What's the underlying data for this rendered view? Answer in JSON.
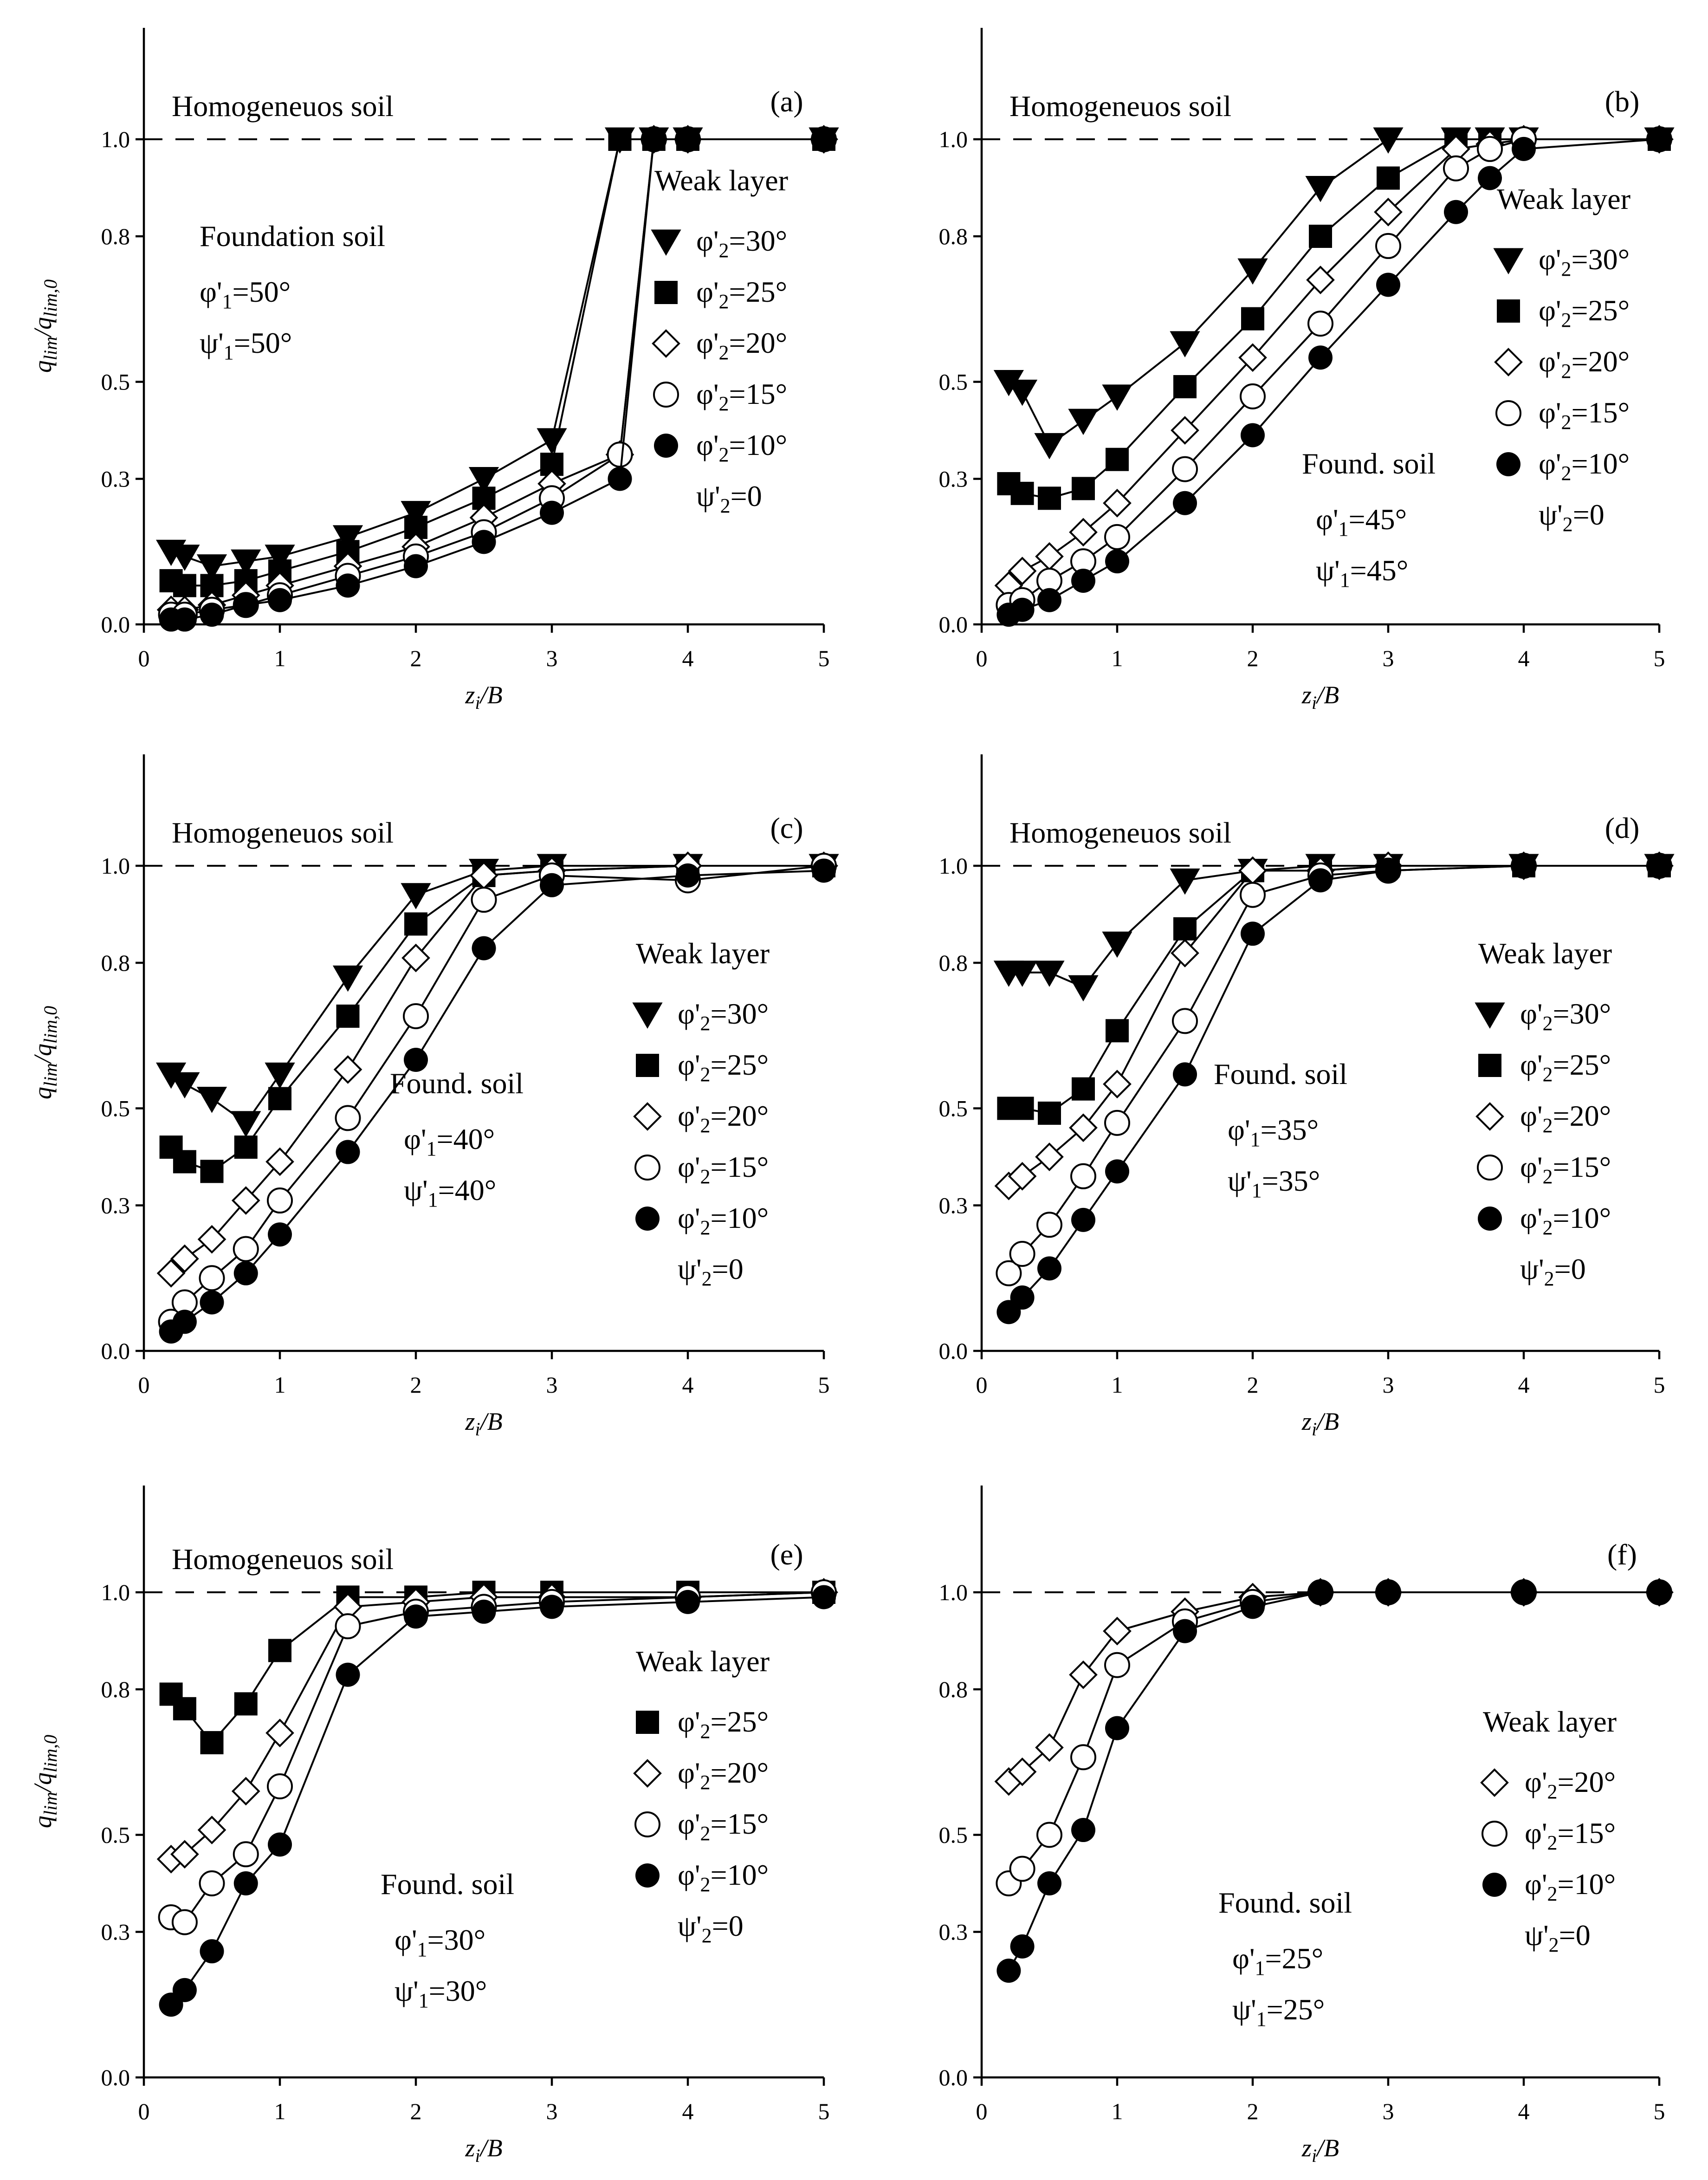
{
  "figure": {
    "x_axis_label": "z",
    "x_axis_label_sub": "i",
    "x_axis_label_tail": "/B",
    "y_axis_label": "q",
    "y_axis_label_sub": "lim",
    "y_axis_label_mid": "/q",
    "y_axis_label_sub2": "lim,0",
    "weak_layer_title": "Weak layer",
    "homogeneous_label": "Homogeneuos soil",
    "dilation_weak": "ψ'2=0"
  },
  "chart_data": [
    {
      "id": "a",
      "panel_label": "(a)",
      "type": "line",
      "xlim": [
        0,
        5
      ],
      "ylim": [
        0,
        1.2
      ],
      "xticks": [
        "0",
        "1",
        "2",
        "3",
        "4",
        "5"
      ],
      "yticks": [
        "0.0",
        "0.3",
        "0.5",
        "0.8",
        "1.0"
      ],
      "ytick_values": [
        0,
        0.3,
        0.5,
        0.8,
        1.0
      ],
      "reference_value": 1.0,
      "show_homogeneous": true,
      "foundation_title": "Foundation soil",
      "phi1": "φ'1=50°",
      "psi1": "ψ'1=50°",
      "legend_items": [
        "φ'2=30°",
        "φ'2=25°",
        "φ'2=20°",
        "φ'2=15°",
        "φ'2=10°"
      ],
      "series": [
        {
          "name": "φ'2=30°",
          "marker": "triangle-down",
          "x": [
            0.2,
            0.3,
            0.5,
            0.75,
            1,
            1.5,
            2,
            2.5,
            3,
            3.5,
            3.75,
            4,
            5
          ],
          "y": [
            0.15,
            0.14,
            0.12,
            0.13,
            0.14,
            0.18,
            0.23,
            0.3,
            0.38,
            1,
            1,
            1,
            1
          ]
        },
        {
          "name": "φ'2=25°",
          "marker": "square",
          "x": [
            0.2,
            0.3,
            0.5,
            0.75,
            1,
            1.5,
            2,
            2.5,
            3,
            3.5,
            3.75,
            4,
            5
          ],
          "y": [
            0.09,
            0.08,
            0.08,
            0.09,
            0.11,
            0.15,
            0.2,
            0.26,
            0.33,
            1,
            1,
            1,
            1
          ]
        },
        {
          "name": "φ'2=20°",
          "marker": "diamond-open",
          "x": [
            0.2,
            0.3,
            0.5,
            0.75,
            1,
            1.5,
            2,
            2.5,
            3,
            3.5,
            3.75,
            4,
            5
          ],
          "y": [
            0.03,
            0.03,
            0.04,
            0.06,
            0.08,
            0.12,
            0.16,
            0.22,
            0.29,
            0.35,
            1,
            1,
            1
          ]
        },
        {
          "name": "φ'2=15°",
          "marker": "circle-open",
          "x": [
            0.2,
            0.3,
            0.5,
            0.75,
            1,
            1.5,
            2,
            2.5,
            3,
            3.5,
            3.75,
            4,
            5
          ],
          "y": [
            0.02,
            0.02,
            0.03,
            0.04,
            0.06,
            0.1,
            0.14,
            0.19,
            0.26,
            0.35,
            1,
            1,
            1
          ]
        },
        {
          "name": "φ'2=10°",
          "marker": "circle-filled",
          "x": [
            0.2,
            0.3,
            0.5,
            0.75,
            1,
            1.5,
            2,
            2.5,
            3,
            3.5,
            3.75,
            4,
            5
          ],
          "y": [
            0.01,
            0.01,
            0.02,
            0.04,
            0.05,
            0.08,
            0.12,
            0.17,
            0.23,
            0.3,
            1,
            1,
            1
          ]
        }
      ]
    },
    {
      "id": "b",
      "panel_label": "(b)",
      "type": "line",
      "xlim": [
        0,
        5
      ],
      "ylim": [
        0,
        1.2
      ],
      "xticks": [
        "0",
        "1",
        "2",
        "3",
        "4",
        "5"
      ],
      "yticks": [
        "0.0",
        "0.3",
        "0.5",
        "0.8",
        "1.0"
      ],
      "ytick_values": [
        0,
        0.3,
        0.5,
        0.8,
        1.0
      ],
      "reference_value": 1.0,
      "show_homogeneous": true,
      "foundation_title": "Found. soil",
      "phi1": "φ'1=45°",
      "psi1": "ψ'1=45°",
      "legend_items": [
        "φ'2=30°",
        "φ'2=25°",
        "φ'2=20°",
        "φ'2=15°",
        "φ'2=10°"
      ],
      "series": [
        {
          "name": "φ'2=30°",
          "marker": "triangle-down",
          "x": [
            0.2,
            0.3,
            0.5,
            0.75,
            1,
            1.5,
            2,
            2.5,
            3,
            3.5,
            3.75,
            4,
            5
          ],
          "y": [
            0.5,
            0.48,
            0.37,
            0.42,
            0.47,
            0.58,
            0.73,
            0.9,
            1,
            1,
            1,
            1,
            1
          ]
        },
        {
          "name": "φ'2=25°",
          "marker": "square",
          "x": [
            0.2,
            0.3,
            0.5,
            0.75,
            1,
            1.5,
            2,
            2.5,
            3,
            3.5,
            3.75,
            4,
            5
          ],
          "y": [
            0.29,
            0.27,
            0.26,
            0.28,
            0.34,
            0.49,
            0.63,
            0.8,
            0.92,
            1,
            1,
            1,
            1
          ]
        },
        {
          "name": "φ'2=20°",
          "marker": "diamond-open",
          "x": [
            0.2,
            0.3,
            0.5,
            0.75,
            1,
            1.5,
            2,
            2.5,
            3,
            3.5,
            3.75,
            4,
            5
          ],
          "y": [
            0.08,
            0.11,
            0.14,
            0.19,
            0.25,
            0.4,
            0.55,
            0.71,
            0.85,
            0.98,
            0.99,
            1,
            1
          ]
        },
        {
          "name": "φ'2=15°",
          "marker": "circle-open",
          "x": [
            0.2,
            0.3,
            0.5,
            0.75,
            1,
            1.5,
            2,
            2.5,
            3,
            3.5,
            3.75,
            4,
            5
          ],
          "y": [
            0.04,
            0.05,
            0.09,
            0.13,
            0.18,
            0.32,
            0.47,
            0.62,
            0.78,
            0.94,
            0.98,
            1,
            1
          ]
        },
        {
          "name": "φ'2=10°",
          "marker": "circle-filled",
          "x": [
            0.2,
            0.3,
            0.5,
            0.75,
            1,
            1.5,
            2,
            2.5,
            3,
            3.5,
            3.75,
            4,
            5
          ],
          "y": [
            0.02,
            0.03,
            0.05,
            0.09,
            0.13,
            0.25,
            0.39,
            0.55,
            0.7,
            0.85,
            0.92,
            0.98,
            1
          ]
        }
      ]
    },
    {
      "id": "c",
      "panel_label": "(c)",
      "type": "line",
      "xlim": [
        0,
        5
      ],
      "ylim": [
        0,
        1.2
      ],
      "xticks": [
        "0",
        "1",
        "2",
        "3",
        "4",
        "5"
      ],
      "yticks": [
        "0.0",
        "0.3",
        "0.5",
        "0.8",
        "1.0"
      ],
      "ytick_values": [
        0,
        0.3,
        0.5,
        0.8,
        1.0
      ],
      "reference_value": 1.0,
      "show_homogeneous": true,
      "foundation_title": "Found. soil",
      "phi1": "φ'1=40°",
      "psi1": "ψ'1=40°",
      "legend_items": [
        "φ'2=30°",
        "φ'2=25°",
        "φ'2=20°",
        "φ'2=15°",
        "φ'2=10°"
      ],
      "series": [
        {
          "name": "φ'2=30°",
          "marker": "triangle-down",
          "x": [
            0.2,
            0.3,
            0.5,
            0.75,
            1,
            1.5,
            2,
            2.5,
            3,
            4,
            5
          ],
          "y": [
            0.57,
            0.55,
            0.52,
            0.47,
            0.57,
            0.77,
            0.94,
            0.99,
            1,
            1,
            1
          ]
        },
        {
          "name": "φ'2=25°",
          "marker": "square",
          "x": [
            0.2,
            0.3,
            0.5,
            0.75,
            1,
            1.5,
            2,
            2.5,
            3,
            4,
            5
          ],
          "y": [
            0.42,
            0.39,
            0.37,
            0.42,
            0.52,
            0.69,
            0.88,
            0.98,
            0.99,
            1,
            1
          ]
        },
        {
          "name": "φ'2=20°",
          "marker": "diamond-open",
          "x": [
            0.2,
            0.3,
            0.5,
            0.75,
            1,
            1.5,
            2,
            2.5,
            3,
            4,
            5
          ],
          "y": [
            0.16,
            0.19,
            0.23,
            0.31,
            0.39,
            0.58,
            0.81,
            0.98,
            0.99,
            1,
            1
          ]
        },
        {
          "name": "φ'2=15°",
          "marker": "circle-open",
          "x": [
            0.2,
            0.3,
            0.5,
            0.75,
            1,
            1.5,
            2,
            2.5,
            3,
            4,
            5
          ],
          "y": [
            0.06,
            0.1,
            0.15,
            0.21,
            0.31,
            0.48,
            0.69,
            0.93,
            0.98,
            0.97,
            1
          ]
        },
        {
          "name": "φ'2=10°",
          "marker": "circle-filled",
          "x": [
            0.2,
            0.3,
            0.5,
            0.75,
            1,
            1.5,
            2,
            2.5,
            3,
            4,
            5
          ],
          "y": [
            0.04,
            0.06,
            0.1,
            0.16,
            0.24,
            0.41,
            0.6,
            0.83,
            0.96,
            0.98,
            0.99
          ]
        }
      ]
    },
    {
      "id": "d",
      "panel_label": "(d)",
      "type": "line",
      "xlim": [
        0,
        5
      ],
      "ylim": [
        0,
        1.2
      ],
      "xticks": [
        "0",
        "1",
        "2",
        "3",
        "4",
        "5"
      ],
      "yticks": [
        "0.0",
        "0.3",
        "0.5",
        "0.8",
        "1.0"
      ],
      "ytick_values": [
        0,
        0.3,
        0.5,
        0.8,
        1.0
      ],
      "reference_value": 1.0,
      "show_homogeneous": true,
      "foundation_title": "Found. soil",
      "phi1": "φ'1=35°",
      "psi1": "ψ'1=35°",
      "legend_items": [
        "φ'2=30°",
        "φ'2=25°",
        "φ'2=20°",
        "φ'2=15°",
        "φ'2=10°"
      ],
      "series": [
        {
          "name": "φ'2=30°",
          "marker": "triangle-down",
          "x": [
            0.2,
            0.3,
            0.5,
            0.75,
            1,
            1.5,
            2,
            2.5,
            3,
            4,
            5
          ],
          "y": [
            0.78,
            0.78,
            0.78,
            0.75,
            0.84,
            0.97,
            0.99,
            1,
            1,
            1,
            1
          ]
        },
        {
          "name": "φ'2=25°",
          "marker": "square",
          "x": [
            0.2,
            0.3,
            0.5,
            0.75,
            1,
            1.5,
            2,
            2.5,
            3,
            4,
            5
          ],
          "y": [
            0.5,
            0.5,
            0.49,
            0.54,
            0.66,
            0.87,
            0.99,
            0.99,
            1,
            1,
            1
          ]
        },
        {
          "name": "φ'2=20°",
          "marker": "diamond-open",
          "x": [
            0.2,
            0.3,
            0.5,
            0.75,
            1,
            1.5,
            2,
            2.5,
            3,
            4,
            5
          ],
          "y": [
            0.34,
            0.36,
            0.4,
            0.46,
            0.55,
            0.82,
            0.99,
            0.99,
            1,
            1,
            1
          ]
        },
        {
          "name": "φ'2=15°",
          "marker": "circle-open",
          "x": [
            0.2,
            0.3,
            0.5,
            0.75,
            1,
            1.5,
            2,
            2.5,
            3,
            4,
            5
          ],
          "y": [
            0.16,
            0.2,
            0.26,
            0.36,
            0.47,
            0.68,
            0.94,
            0.98,
            0.99,
            1,
            1
          ]
        },
        {
          "name": "φ'2=10°",
          "marker": "circle-filled",
          "x": [
            0.2,
            0.3,
            0.5,
            0.75,
            1,
            1.5,
            2,
            2.5,
            3,
            4,
            5
          ],
          "y": [
            0.08,
            0.11,
            0.17,
            0.27,
            0.37,
            0.57,
            0.86,
            0.97,
            0.99,
            1,
            1
          ]
        }
      ]
    },
    {
      "id": "e",
      "panel_label": "(e)",
      "type": "line",
      "xlim": [
        0,
        5
      ],
      "ylim": [
        0,
        1.2
      ],
      "xticks": [
        "0",
        "1",
        "2",
        "3",
        "4",
        "5"
      ],
      "yticks": [
        "0.0",
        "0.3",
        "0.5",
        "0.8",
        "1.0"
      ],
      "ytick_values": [
        0,
        0.3,
        0.5,
        0.8,
        1.0
      ],
      "reference_value": 1.0,
      "show_homogeneous": true,
      "foundation_title": "Found. soil",
      "phi1": "φ'1=30°",
      "psi1": "ψ'1=30°",
      "legend_items": [
        "φ'2=25°",
        "φ'2=20°",
        "φ'2=15°",
        "φ'2=10°"
      ],
      "series": [
        {
          "name": "φ'2=25°",
          "marker": "square",
          "x": [
            0.2,
            0.3,
            0.5,
            0.75,
            1,
            1.5,
            2,
            2.5,
            3,
            4,
            5
          ],
          "y": [
            0.79,
            0.76,
            0.69,
            0.77,
            0.88,
            0.99,
            0.99,
            1,
            1,
            1,
            1
          ]
        },
        {
          "name": "φ'2=20°",
          "marker": "diamond-open",
          "x": [
            0.2,
            0.3,
            0.5,
            0.75,
            1,
            1.5,
            2,
            2.5,
            3,
            4,
            5
          ],
          "y": [
            0.45,
            0.46,
            0.51,
            0.59,
            0.71,
            0.97,
            0.98,
            0.99,
            0.99,
            0.99,
            1
          ]
        },
        {
          "name": "φ'2=15°",
          "marker": "circle-open",
          "x": [
            0.2,
            0.3,
            0.5,
            0.75,
            1,
            1.5,
            2,
            2.5,
            3,
            4,
            5
          ],
          "y": [
            0.33,
            0.32,
            0.4,
            0.46,
            0.6,
            0.93,
            0.96,
            0.97,
            0.98,
            0.99,
            1
          ]
        },
        {
          "name": "φ'2=10°",
          "marker": "circle-filled",
          "x": [
            0.2,
            0.3,
            0.5,
            0.75,
            1,
            1.5,
            2,
            2.5,
            3,
            4,
            5
          ],
          "y": [
            0.15,
            0.18,
            0.26,
            0.4,
            0.48,
            0.83,
            0.95,
            0.96,
            0.97,
            0.98,
            0.99
          ]
        }
      ]
    },
    {
      "id": "f",
      "panel_label": "(f)",
      "type": "line",
      "xlim": [
        0,
        5
      ],
      "ylim": [
        0,
        1.2
      ],
      "xticks": [
        "0",
        "1",
        "2",
        "3",
        "4",
        "5"
      ],
      "yticks": [
        "0.0",
        "0.3",
        "0.5",
        "0.8",
        "1.0"
      ],
      "ytick_values": [
        0,
        0.3,
        0.5,
        0.8,
        1.0
      ],
      "reference_value": 1.0,
      "show_homogeneous": false,
      "foundation_title": "Found. soil",
      "phi1": "φ'1=25°",
      "psi1": "ψ'1=25°",
      "legend_items": [
        "φ'2=20°",
        "φ'2=15°",
        "φ'2=10°"
      ],
      "series": [
        {
          "name": "φ'2=20°",
          "marker": "diamond-open",
          "x": [
            0.2,
            0.3,
            0.5,
            0.75,
            1,
            1.5,
            2,
            2.5,
            3,
            4,
            5
          ],
          "y": [
            0.61,
            0.63,
            0.68,
            0.83,
            0.92,
            0.96,
            0.99,
            1,
            1,
            1,
            1
          ]
        },
        {
          "name": "φ'2=15°",
          "marker": "circle-open",
          "x": [
            0.2,
            0.3,
            0.5,
            0.75,
            1,
            1.5,
            2,
            2.5,
            3,
            4,
            5
          ],
          "y": [
            0.4,
            0.43,
            0.5,
            0.66,
            0.85,
            0.94,
            0.98,
            1,
            1,
            1,
            1
          ]
        },
        {
          "name": "φ'2=10°",
          "marker": "circle-filled",
          "x": [
            0.2,
            0.3,
            0.5,
            0.75,
            1,
            1.5,
            2,
            2.5,
            3,
            4,
            5
          ],
          "y": [
            0.22,
            0.27,
            0.4,
            0.51,
            0.72,
            0.92,
            0.97,
            1,
            1,
            1,
            1
          ]
        }
      ]
    }
  ]
}
